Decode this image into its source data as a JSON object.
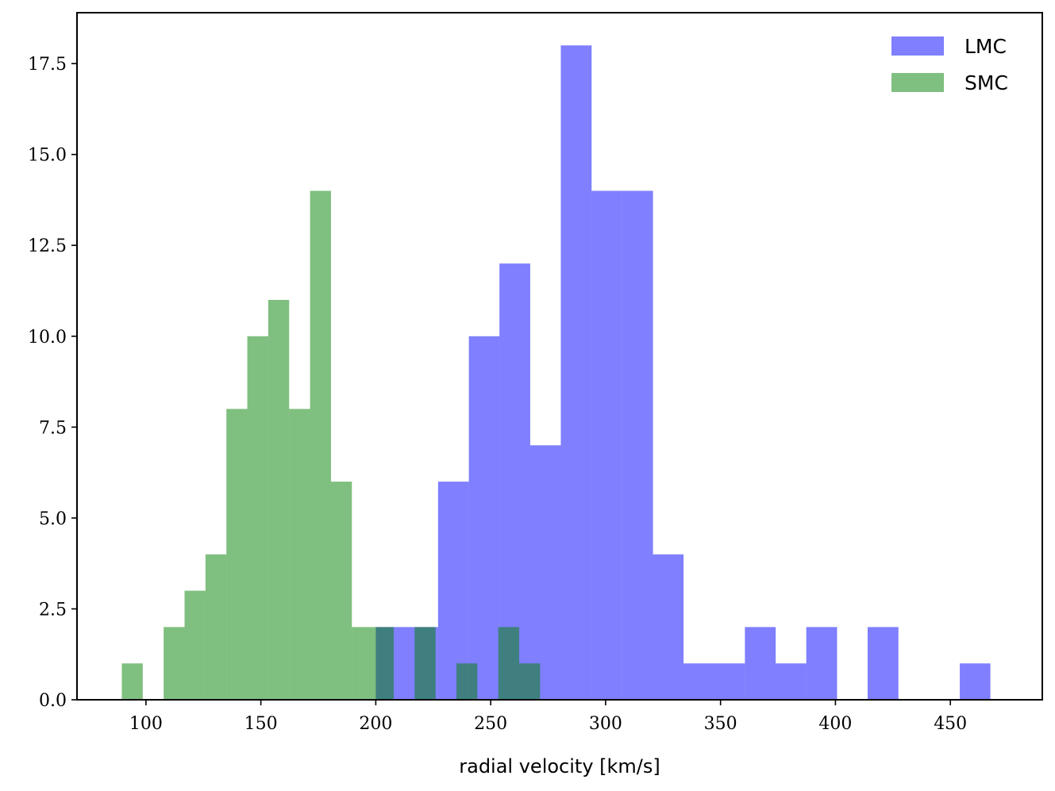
{
  "chart_data": {
    "type": "bar",
    "subtype": "histogram",
    "title": "",
    "xlabel": "radial velocity [km/s]",
    "ylabel": "",
    "xlim": [
      70,
      490
    ],
    "ylim": [
      0,
      18.9
    ],
    "xticks": [
      100,
      150,
      200,
      250,
      300,
      350,
      400,
      450
    ],
    "xtick_labels": [
      "100",
      "150",
      "200",
      "250",
      "300",
      "350",
      "400",
      "450"
    ],
    "yticks": [
      0,
      2.5,
      5,
      7.5,
      10,
      12.5,
      15,
      17.5
    ],
    "ytick_labels": [
      "0.0",
      "2.5",
      "5.0",
      "7.5",
      "10.0",
      "12.5",
      "15.0",
      "17.5"
    ],
    "grid": false,
    "legend_position": "top-right",
    "alpha": 0.5,
    "series": [
      {
        "name": "LMC",
        "color": "#0000ff",
        "bins": [
          {
            "x0": 200.0,
            "x1": 209.0,
            "count": 2
          },
          {
            "x0": 209.0,
            "x1": 218.1,
            "count": 2
          },
          {
            "x0": 218.1,
            "x1": 227.1,
            "count": 2
          },
          {
            "x0": 227.1,
            "x1": 240.5,
            "count": 6
          },
          {
            "x0": 240.5,
            "x1": 253.8,
            "count": 10
          },
          {
            "x0": 253.8,
            "x1": 267.2,
            "count": 12
          },
          {
            "x0": 267.2,
            "x1": 280.5,
            "count": 7
          },
          {
            "x0": 280.5,
            "x1": 293.9,
            "count": 18
          },
          {
            "x0": 293.9,
            "x1": 307.2,
            "count": 14
          },
          {
            "x0": 307.2,
            "x1": 320.6,
            "count": 14
          },
          {
            "x0": 320.6,
            "x1": 333.9,
            "count": 4
          },
          {
            "x0": 333.9,
            "x1": 347.3,
            "count": 1
          },
          {
            "x0": 347.3,
            "x1": 360.6,
            "count": 1
          },
          {
            "x0": 360.6,
            "x1": 374.0,
            "count": 2
          },
          {
            "x0": 374.0,
            "x1": 387.3,
            "count": 1
          },
          {
            "x0": 387.3,
            "x1": 400.7,
            "count": 2
          },
          {
            "x0": 400.7,
            "x1": 414.0,
            "count": 0
          },
          {
            "x0": 414.0,
            "x1": 427.4,
            "count": 2
          },
          {
            "x0": 427.4,
            "x1": 440.7,
            "count": 0
          },
          {
            "x0": 440.7,
            "x1": 454.1,
            "count": 0
          },
          {
            "x0": 454.1,
            "x1": 467.4,
            "count": 1
          }
        ]
      },
      {
        "name": "SMC",
        "color": "#008000",
        "bins": [
          {
            "x0": 89.5,
            "x1": 98.6,
            "count": 1
          },
          {
            "x0": 98.6,
            "x1": 107.7,
            "count": 0
          },
          {
            "x0": 107.7,
            "x1": 116.8,
            "count": 2
          },
          {
            "x0": 116.8,
            "x1": 125.9,
            "count": 3
          },
          {
            "x0": 125.9,
            "x1": 135.0,
            "count": 4
          },
          {
            "x0": 135.0,
            "x1": 144.1,
            "count": 8
          },
          {
            "x0": 144.1,
            "x1": 153.2,
            "count": 10
          },
          {
            "x0": 153.2,
            "x1": 162.3,
            "count": 11
          },
          {
            "x0": 162.3,
            "x1": 171.4,
            "count": 8
          },
          {
            "x0": 171.4,
            "x1": 180.5,
            "count": 14
          },
          {
            "x0": 180.5,
            "x1": 189.6,
            "count": 6
          },
          {
            "x0": 189.6,
            "x1": 198.7,
            "count": 2
          },
          {
            "x0": 198.7,
            "x1": 207.8,
            "count": 2
          },
          {
            "x0": 207.8,
            "x1": 216.9,
            "count": 0
          },
          {
            "x0": 216.9,
            "x1": 226.0,
            "count": 2
          },
          {
            "x0": 226.0,
            "x1": 235.1,
            "count": 0
          },
          {
            "x0": 235.1,
            "x1": 244.2,
            "count": 1
          },
          {
            "x0": 244.2,
            "x1": 253.3,
            "count": 0
          },
          {
            "x0": 253.3,
            "x1": 262.4,
            "count": 2
          },
          {
            "x0": 262.4,
            "x1": 271.5,
            "count": 1
          }
        ]
      }
    ]
  }
}
